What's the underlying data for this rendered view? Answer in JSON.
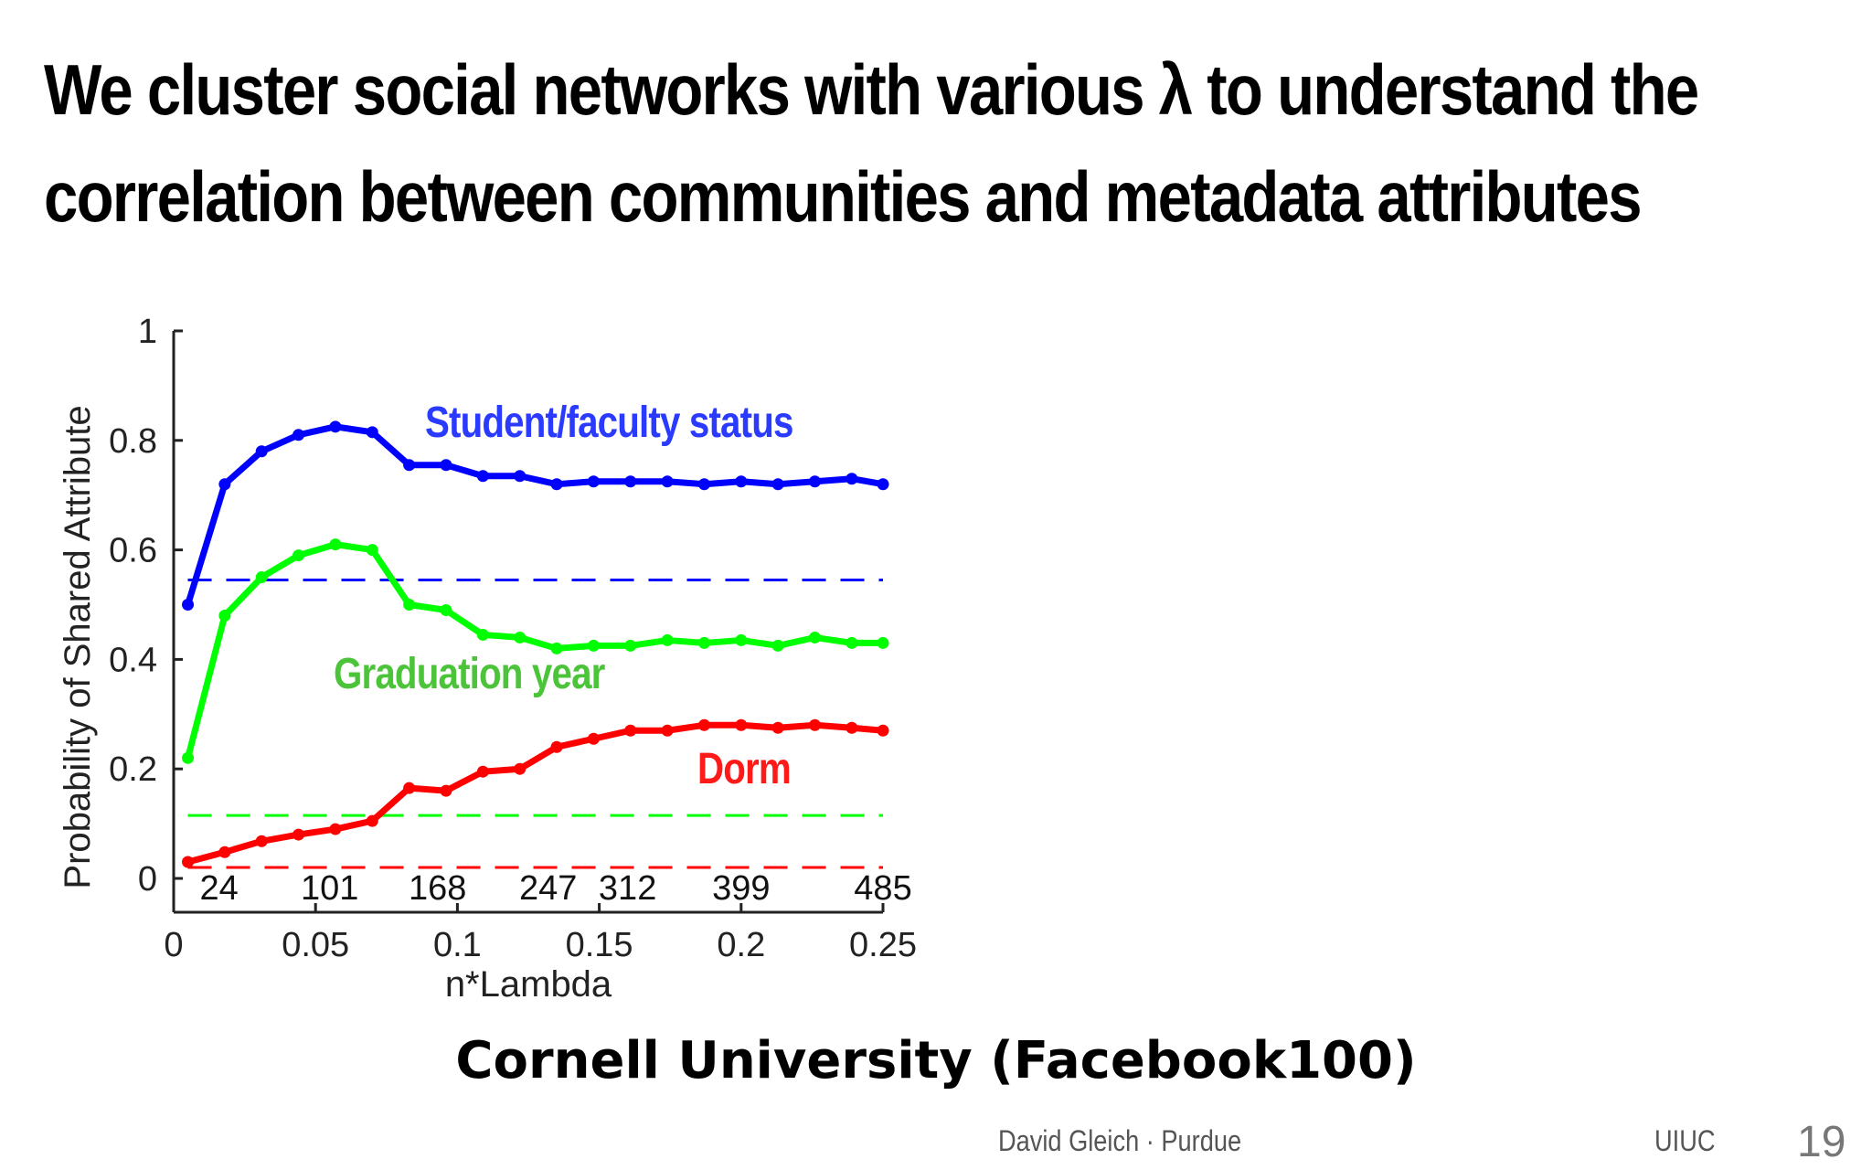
{
  "slide": {
    "title_lines": [
      "We cluster social networks with various λ to understand the",
      "correlation between communities and metadata attributes"
    ],
    "caption": "Cornell University (Facebook100)",
    "footer": {
      "author": "David Gleich · Purdue",
      "venue": "UIUC",
      "page": "19"
    }
  },
  "chart_data": {
    "type": "line",
    "xlabel": "n*Lambda",
    "ylabel": "Probability of Shared Attribute",
    "xlim": [
      0,
      0.25
    ],
    "ylim": [
      0,
      1
    ],
    "xticks": [
      "0",
      "0.05",
      "0.1",
      "0.15",
      "0.2",
      "0.25"
    ],
    "xtick_values": [
      0,
      0.05,
      0.1,
      0.15,
      0.2,
      0.25
    ],
    "yticks": [
      "0",
      "0.2",
      "0.4",
      "0.6",
      "0.8",
      "1"
    ],
    "ytick_values": [
      0,
      0.2,
      0.4,
      0.6,
      0.8,
      1
    ],
    "top_tick_labels": [
      "24",
      "101",
      "168",
      "247",
      "312",
      "399",
      "485"
    ],
    "top_tick_values": [
      0.016,
      0.055,
      0.093,
      0.132,
      0.16,
      0.2,
      0.25
    ],
    "grid": false,
    "x": [
      0.005,
      0.018,
      0.031,
      0.044,
      0.057,
      0.07,
      0.083,
      0.096,
      0.109,
      0.122,
      0.135,
      0.148,
      0.161,
      0.174,
      0.187,
      0.2,
      0.213,
      0.226,
      0.239,
      0.25
    ],
    "series": [
      {
        "name": "Student/faculty status",
        "color": "#0000ff",
        "values": [
          0.5,
          0.72,
          0.78,
          0.81,
          0.825,
          0.815,
          0.755,
          0.755,
          0.735,
          0.735,
          0.72,
          0.725,
          0.725,
          0.725,
          0.72,
          0.725,
          0.72,
          0.725,
          0.73,
          0.72
        ]
      },
      {
        "name": "Graduation year",
        "color": "#00ff00",
        "values": [
          0.22,
          0.48,
          0.55,
          0.59,
          0.61,
          0.6,
          0.5,
          0.49,
          0.445,
          0.44,
          0.42,
          0.425,
          0.425,
          0.435,
          0.43,
          0.435,
          0.425,
          0.44,
          0.43,
          0.43
        ]
      },
      {
        "name": "Dorm",
        "color": "#ff0000",
        "values": [
          0.03,
          0.048,
          0.068,
          0.08,
          0.09,
          0.105,
          0.165,
          0.16,
          0.195,
          0.2,
          0.24,
          0.255,
          0.27,
          0.27,
          0.28,
          0.28,
          0.275,
          0.28,
          0.275,
          0.27
        ]
      }
    ],
    "baselines": [
      {
        "color": "#0000ff",
        "x": [
          0.005,
          0.25
        ],
        "values": [
          0.545,
          0.545
        ]
      },
      {
        "color": "#00ff00",
        "x": [
          0.005,
          0.25
        ],
        "values": [
          0.115,
          0.115
        ]
      },
      {
        "color": "#ff0000",
        "x": [
          0.005,
          0.25
        ],
        "values": [
          0.02,
          0.02
        ]
      }
    ],
    "annotations": [
      {
        "text": "Student/faculty status",
        "color": "#2a3bff"
      },
      {
        "text": "Graduation year",
        "color": "#4cc43a"
      },
      {
        "text": "Dorm",
        "color": "#ff1a1a"
      }
    ]
  }
}
